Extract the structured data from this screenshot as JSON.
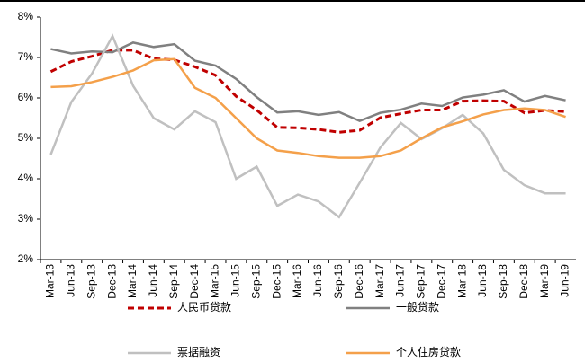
{
  "chart_data": {
    "type": "line",
    "categories": [
      "Mar-13",
      "Jun-13",
      "Sep-13",
      "Dec-13",
      "Mar-14",
      "Jun-14",
      "Sep-14",
      "Dec-14",
      "Mar-15",
      "Jun-15",
      "Sep-15",
      "Dec-15",
      "Mar-16",
      "Jun-16",
      "Sep-16",
      "Dec-16",
      "Mar-17",
      "Jun-17",
      "Sep-17",
      "Dec-17",
      "Mar-18",
      "Jun-18",
      "Sep-18",
      "Dec-18",
      "Mar-19",
      "Jun-19"
    ],
    "ylim": [
      2,
      8
    ],
    "yticks": [
      {
        "value": 2,
        "label": "2%"
      },
      {
        "value": 3,
        "label": "3%"
      },
      {
        "value": 4,
        "label": "4%"
      },
      {
        "value": 5,
        "label": "5%"
      },
      {
        "value": 6,
        "label": "6%"
      },
      {
        "value": 7,
        "label": "7%"
      },
      {
        "value": 8,
        "label": "8%"
      }
    ],
    "grid": false,
    "series": [
      {
        "name": "人民币贷款",
        "color": "#c00000",
        "dashed": true,
        "values": [
          6.65,
          6.9,
          7.03,
          7.18,
          7.18,
          6.97,
          6.94,
          6.77,
          6.56,
          6.04,
          5.7,
          5.27,
          5.26,
          5.22,
          5.15,
          5.2,
          5.51,
          5.61,
          5.7,
          5.7,
          5.92,
          5.93,
          5.92,
          5.63,
          5.69,
          5.66
        ]
      },
      {
        "name": "一般贷款",
        "color": "#808080",
        "dashed": false,
        "values": [
          7.21,
          7.1,
          7.15,
          7.13,
          7.37,
          7.26,
          7.33,
          6.92,
          6.8,
          6.47,
          6.02,
          5.64,
          5.67,
          5.58,
          5.65,
          5.43,
          5.63,
          5.71,
          5.86,
          5.8,
          6.01,
          6.08,
          6.19,
          5.91,
          6.05,
          5.94
        ]
      },
      {
        "name": "票据融资",
        "color": "#c0c0c0",
        "dashed": false,
        "values": [
          4.6,
          5.9,
          6.6,
          7.53,
          6.3,
          5.5,
          5.22,
          5.67,
          5.4,
          4.0,
          4.3,
          3.33,
          3.61,
          3.44,
          3.05,
          3.9,
          4.77,
          5.38,
          4.98,
          5.25,
          5.58,
          5.12,
          4.22,
          3.84,
          3.64,
          3.64
        ]
      },
      {
        "name": "个人住房贷款",
        "color": "#f4a04a",
        "dashed": false,
        "values": [
          6.27,
          6.29,
          6.39,
          6.52,
          6.68,
          6.93,
          6.96,
          6.25,
          6.0,
          5.5,
          5.0,
          4.7,
          4.64,
          4.56,
          4.52,
          4.52,
          4.56,
          4.7,
          5.0,
          5.27,
          5.42,
          5.59,
          5.7,
          5.74,
          5.7,
          5.53
        ]
      }
    ]
  }
}
